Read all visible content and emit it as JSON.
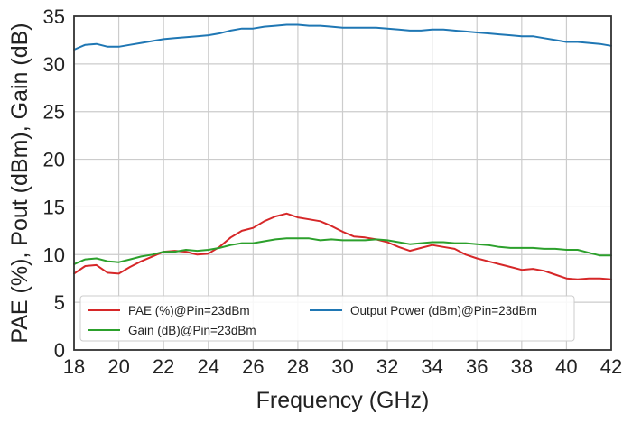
{
  "chart_data": {
    "type": "line",
    "title": "",
    "xlabel": "Frequency (GHz)",
    "ylabel": "PAE (%), Pout (dBm), Gain (dB)",
    "xlim": [
      18,
      42
    ],
    "ylim": [
      0,
      35
    ],
    "xticks": [
      18,
      20,
      22,
      24,
      26,
      28,
      30,
      32,
      34,
      36,
      38,
      40,
      42
    ],
    "yticks": [
      0,
      5,
      10,
      15,
      20,
      25,
      30,
      35
    ],
    "grid": true,
    "legend_position": "lower-left",
    "series": [
      {
        "name": "PAE (%)@Pin=23dBm",
        "color": "#d62728",
        "x": [
          18,
          18.5,
          19,
          19.5,
          20,
          20.5,
          21,
          21.5,
          22,
          22.5,
          23,
          23.5,
          24,
          24.5,
          25,
          25.5,
          26,
          26.5,
          27,
          27.5,
          28,
          28.5,
          29,
          29.5,
          30,
          30.5,
          31,
          31.5,
          32,
          32.5,
          33,
          33.5,
          34,
          34.5,
          35,
          35.5,
          36,
          36.5,
          37,
          37.5,
          38,
          38.5,
          39,
          39.5,
          40,
          40.5,
          41,
          41.5,
          42
        ],
        "y": [
          8.0,
          8.8,
          8.9,
          8.1,
          8.0,
          8.7,
          9.3,
          9.8,
          10.3,
          10.4,
          10.3,
          10.0,
          10.1,
          10.8,
          11.8,
          12.5,
          12.8,
          13.5,
          14.0,
          14.3,
          13.9,
          13.7,
          13.5,
          13.0,
          12.4,
          11.9,
          11.8,
          11.6,
          11.3,
          10.8,
          10.4,
          10.7,
          11.0,
          10.8,
          10.6,
          10.0,
          9.6,
          9.3,
          9.0,
          8.7,
          8.4,
          8.5,
          8.3,
          7.9,
          7.5,
          7.4,
          7.5,
          7.5,
          7.4
        ]
      },
      {
        "name": "Gain (dB)@Pin=23dBm",
        "color": "#2ca02c",
        "x": [
          18,
          18.5,
          19,
          19.5,
          20,
          20.5,
          21,
          21.5,
          22,
          22.5,
          23,
          23.5,
          24,
          24.5,
          25,
          25.5,
          26,
          26.5,
          27,
          27.5,
          28,
          28.5,
          29,
          29.5,
          30,
          30.5,
          31,
          31.5,
          32,
          32.5,
          33,
          33.5,
          34,
          34.5,
          35,
          35.5,
          36,
          36.5,
          37,
          37.5,
          38,
          38.5,
          39,
          39.5,
          40,
          40.5,
          41,
          41.5,
          42
        ],
        "y": [
          9.0,
          9.5,
          9.6,
          9.3,
          9.2,
          9.5,
          9.8,
          10.0,
          10.3,
          10.3,
          10.5,
          10.4,
          10.5,
          10.7,
          11.0,
          11.2,
          11.2,
          11.4,
          11.6,
          11.7,
          11.7,
          11.7,
          11.5,
          11.6,
          11.5,
          11.5,
          11.5,
          11.6,
          11.5,
          11.3,
          11.1,
          11.2,
          11.3,
          11.3,
          11.2,
          11.2,
          11.1,
          11.0,
          10.8,
          10.7,
          10.7,
          10.7,
          10.6,
          10.6,
          10.5,
          10.5,
          10.2,
          9.9,
          9.9
        ]
      },
      {
        "name": "Output Power (dBm)@Pin=23dBm",
        "color": "#1f77b4",
        "x": [
          18,
          18.5,
          19,
          19.5,
          20,
          20.5,
          21,
          21.5,
          22,
          22.5,
          23,
          23.5,
          24,
          24.5,
          25,
          25.5,
          26,
          26.5,
          27,
          27.5,
          28,
          28.5,
          29,
          29.5,
          30,
          30.5,
          31,
          31.5,
          32,
          32.5,
          33,
          33.5,
          34,
          34.5,
          35,
          35.5,
          36,
          36.5,
          37,
          37.5,
          38,
          38.5,
          39,
          39.5,
          40,
          40.5,
          41,
          41.5,
          42
        ],
        "y": [
          31.5,
          32.0,
          32.1,
          31.8,
          31.8,
          32.0,
          32.2,
          32.4,
          32.6,
          32.7,
          32.8,
          32.9,
          33.0,
          33.2,
          33.5,
          33.7,
          33.7,
          33.9,
          34.0,
          34.1,
          34.1,
          34.0,
          34.0,
          33.9,
          33.8,
          33.8,
          33.8,
          33.8,
          33.7,
          33.6,
          33.5,
          33.5,
          33.6,
          33.6,
          33.5,
          33.4,
          33.3,
          33.2,
          33.1,
          33.0,
          32.9,
          32.9,
          32.7,
          32.5,
          32.3,
          32.3,
          32.2,
          32.1,
          31.9
        ]
      }
    ]
  }
}
